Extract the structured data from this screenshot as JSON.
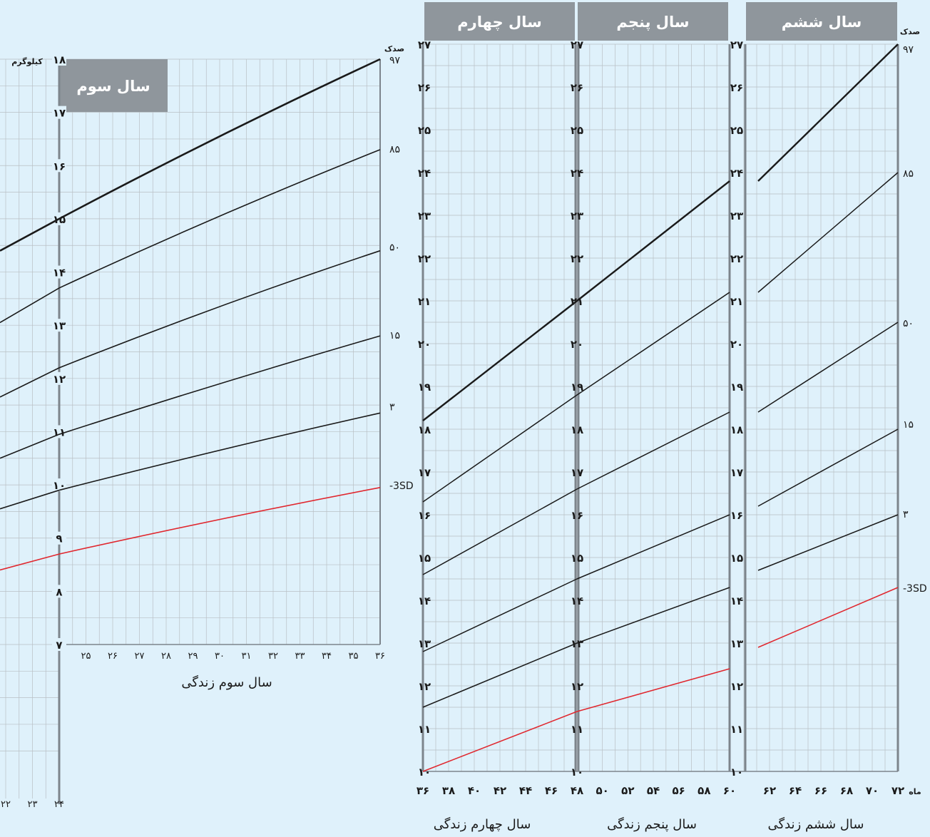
{
  "colors": {
    "background": "#dff1fb",
    "grid": "#b9bfc4",
    "axis": "#7d858c",
    "header_box": "#8f969c",
    "curve": "#1a1a1a",
    "sd_curve": "#e0272e"
  },
  "unit_label": "کیلوگرم",
  "percentile_header": "صدک",
  "month_unit": "ماه",
  "panels": [
    {
      "id": "year3",
      "title": "سال سوم",
      "xlabel": "سال سوم زندگی"
    },
    {
      "id": "year4",
      "title": "سال چهارم",
      "xlabel": "سال چهارم زندگی"
    },
    {
      "id": "year5",
      "title": "سال پنجم",
      "xlabel": "سال پنجم زندگی"
    },
    {
      "id": "year6",
      "title": "سال ششم",
      "xlabel": "سال ششم زندگی"
    }
  ],
  "percentile_labels_left": [
    "۹۷",
    "۸۵",
    "۵۰",
    "۱۵",
    "۳",
    "-3SD"
  ],
  "percentile_labels_right": [
    "۹۷",
    "۸۵",
    "۵۰",
    "۱۵",
    "۳",
    "-3SD"
  ],
  "ytick_labels_left": [
    "۷",
    "۸",
    "۹",
    "۱۰",
    "۱۱",
    "۱۲",
    "۱۳",
    "۱۴",
    "۱۵",
    "۱۶",
    "۱۷",
    "۱۸"
  ],
  "ytick_labels_right": [
    "۱۰",
    "۱۱",
    "۱۲",
    "۱۳",
    "۱۴",
    "۱۵",
    "۱۶",
    "۱۷",
    "۱۸",
    "۱۹",
    "۲۰",
    "۲۱",
    "۲۲",
    "۲۳",
    "۲۴",
    "۲۵",
    "۲۶",
    "۲۷"
  ],
  "xtick_labels_left_partial": [
    "۲۲",
    "۲۳",
    "۲۴"
  ],
  "xtick_labels_year3": [
    "۲۵",
    "۲۶",
    "۲۷",
    "۲۸",
    "۲۹",
    "۳۰",
    "۳۱",
    "۳۲",
    "۳۳",
    "۳۴",
    "۳۵",
    "۳۶"
  ],
  "xtick_labels_right": [
    "۳۶",
    "۳۸",
    "۴۰",
    "۴۲",
    "۴۴",
    "۴۶",
    "۴۸",
    "۵۰",
    "۵۲",
    "۵۴",
    "۵۶",
    "۵۸",
    "۶۰",
    "۶۲",
    "۶۴",
    "۶۶",
    "۶۸",
    "۷۰",
    "۷۲"
  ],
  "chart_data": [
    {
      "type": "line",
      "panel": "year3",
      "xlabel": "سال سوم زندگی",
      "ylabel": "کیلوگرم",
      "xlim": [
        24,
        36
      ],
      "ylim": [
        7,
        18
      ],
      "grid": true,
      "x": [
        24,
        30,
        36
      ],
      "series": [
        {
          "name": "97",
          "values": [
            15.0,
            16.55,
            18.0
          ]
        },
        {
          "name": "85",
          "values": [
            13.7,
            15.05,
            16.3
          ]
        },
        {
          "name": "50",
          "values": [
            12.2,
            13.35,
            14.4
          ]
        },
        {
          "name": "15",
          "values": [
            10.95,
            11.9,
            12.8
          ]
        },
        {
          "name": "3",
          "values": [
            9.9,
            10.65,
            11.35
          ]
        },
        {
          "name": "-3SD",
          "values": [
            8.7,
            9.35,
            9.95
          ]
        }
      ]
    },
    {
      "type": "line",
      "panel": "year4-6",
      "xlabel": "سال چهارم زندگی / سال پنجم زندگی / سال ششم زندگی",
      "ylabel": "کیلوگرم",
      "xlim": [
        36,
        72
      ],
      "ylim": [
        10,
        27
      ],
      "grid": true,
      "segments": [
        {
          "x": [
            36,
            48
          ],
          "series": [
            {
              "name": "97",
              "values": [
                18.2,
                21.0
              ]
            },
            {
              "name": "85",
              "values": [
                16.3,
                18.8
              ]
            },
            {
              "name": "50",
              "values": [
                14.6,
                16.6
              ]
            },
            {
              "name": "15",
              "values": [
                12.8,
                14.5
              ]
            },
            {
              "name": "3",
              "values": [
                11.5,
                13.0
              ]
            },
            {
              "name": "-3SD",
              "values": [
                10.0,
                11.4
              ]
            }
          ]
        },
        {
          "x": [
            48,
            60
          ],
          "series": [
            {
              "name": "97",
              "values": [
                21.0,
                23.8
              ]
            },
            {
              "name": "85",
              "values": [
                18.8,
                21.2
              ]
            },
            {
              "name": "50",
              "values": [
                16.6,
                18.4
              ]
            },
            {
              "name": "15",
              "values": [
                14.5,
                16.0
              ]
            },
            {
              "name": "3",
              "values": [
                13.0,
                14.3
              ]
            },
            {
              "name": "-3SD",
              "values": [
                11.4,
                12.4
              ]
            }
          ]
        },
        {
          "x": [
            61,
            72
          ],
          "series": [
            {
              "name": "97",
              "values": [
                23.8,
                27.0
              ]
            },
            {
              "name": "85",
              "values": [
                21.2,
                24.0
              ]
            },
            {
              "name": "50",
              "values": [
                18.4,
                20.5
              ]
            },
            {
              "name": "15",
              "values": [
                16.2,
                18.0
              ]
            },
            {
              "name": "3",
              "values": [
                14.7,
                16.0
              ]
            },
            {
              "name": "-3SD",
              "values": [
                12.9,
                14.3
              ]
            }
          ]
        }
      ]
    }
  ]
}
